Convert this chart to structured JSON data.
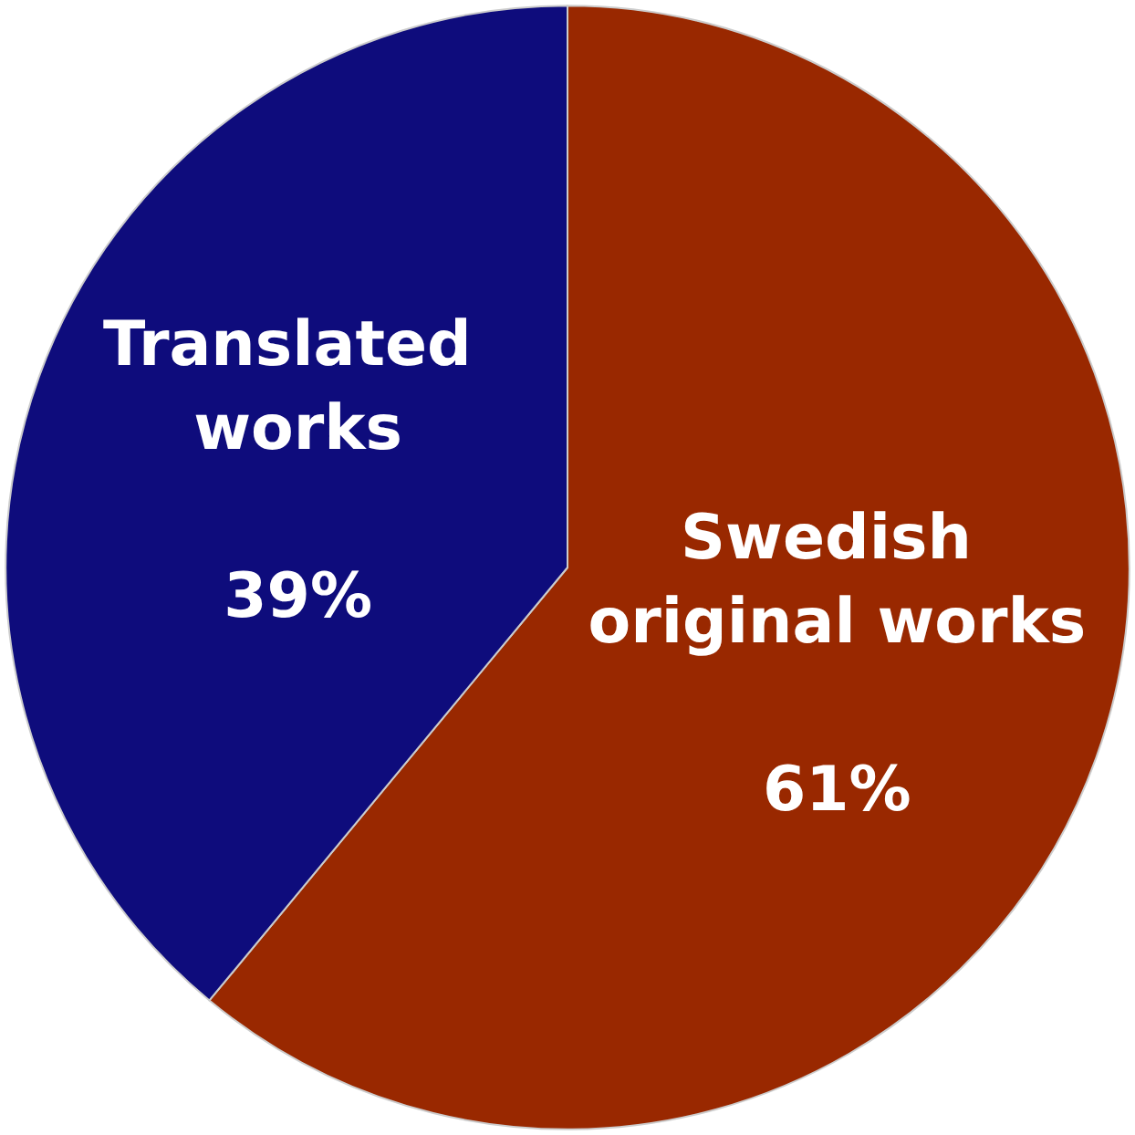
{
  "chart_data": {
    "type": "pie",
    "categories": [
      "Swedish original works",
      "Translated works"
    ],
    "values": [
      61,
      39
    ],
    "colors": [
      "#992800",
      "#0e0c7c"
    ],
    "value_labels": [
      "61%",
      "39%"
    ]
  }
}
